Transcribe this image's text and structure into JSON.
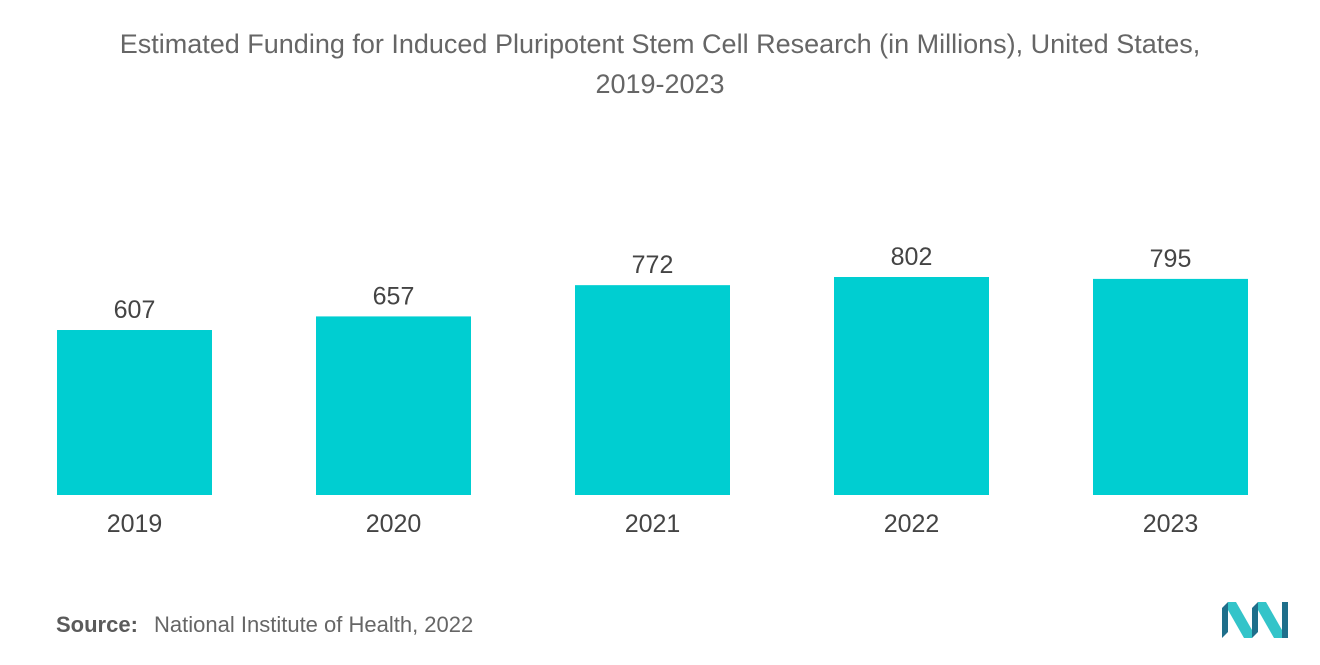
{
  "title_line1": "Estimated Funding for Induced Pluripotent Stem Cell Research (in Millions), United States,",
  "title_line2": "2019-2023",
  "source_label": "Source:",
  "source_text": "National Institute of Health, 2022",
  "colors": {
    "bar": "#00CED1",
    "text": "#666666",
    "logo_dark": "#1f6f8b",
    "logo_light": "#33c4c9"
  },
  "chart_data": {
    "type": "bar",
    "categories": [
      "2019",
      "2020",
      "2021",
      "2022",
      "2023"
    ],
    "values": [
      607,
      657,
      772,
      802,
      795
    ],
    "title": "Estimated Funding for Induced Pluripotent Stem Cell Research (in Millions), United States, 2019-2023",
    "xlabel": "",
    "ylabel": "",
    "ylim": [
      0,
      820
    ],
    "grid": false,
    "legend": "none",
    "data_labels": true
  }
}
